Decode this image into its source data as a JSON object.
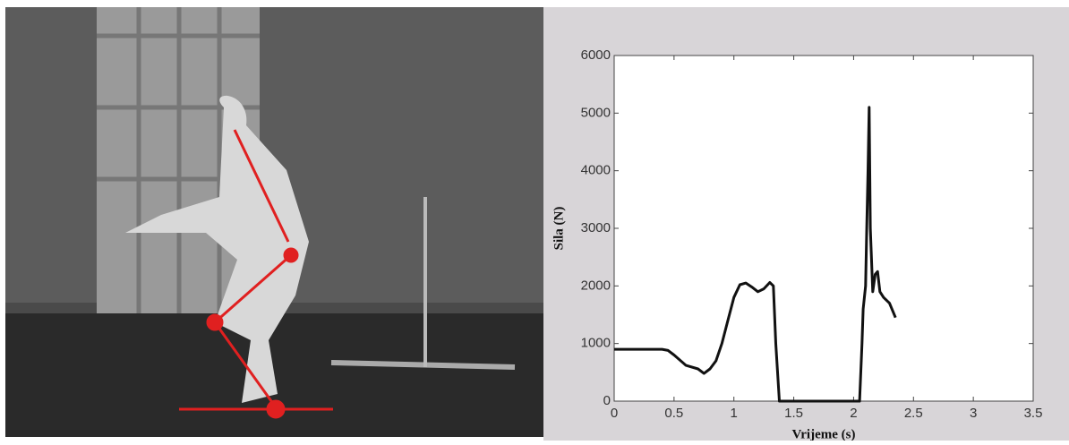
{
  "chart_data": {
    "type": "line",
    "xlabel": "Vrijeme (s)",
    "ylabel": "Sila (N)",
    "xlim": [
      0,
      3.5
    ],
    "ylim": [
      0,
      6000
    ],
    "xticks": [
      0,
      0.5,
      1,
      1.5,
      2,
      2.5,
      3,
      3.5
    ],
    "yticks": [
      0,
      1000,
      2000,
      3000,
      4000,
      5000,
      6000
    ],
    "color": "#111111",
    "x": [
      0,
      0.4,
      0.45,
      0.5,
      0.6,
      0.7,
      0.75,
      0.8,
      0.85,
      0.9,
      0.95,
      1.0,
      1.05,
      1.1,
      1.15,
      1.2,
      1.25,
      1.3,
      1.33,
      1.35,
      1.38,
      1.5,
      2.0,
      2.05,
      2.07,
      2.08,
      2.1,
      2.11,
      2.12,
      2.13,
      2.14,
      2.16,
      2.18,
      2.2,
      2.22,
      2.25,
      2.3,
      2.35
    ],
    "values": [
      900,
      900,
      880,
      800,
      620,
      560,
      480,
      560,
      700,
      1000,
      1400,
      1800,
      2020,
      2050,
      1980,
      1900,
      1950,
      2060,
      2000,
      1000,
      0,
      0,
      0,
      0,
      1000,
      1600,
      2000,
      3000,
      4000,
      5100,
      3000,
      1900,
      2200,
      2250,
      1900,
      1800,
      1700,
      1450
    ]
  }
}
